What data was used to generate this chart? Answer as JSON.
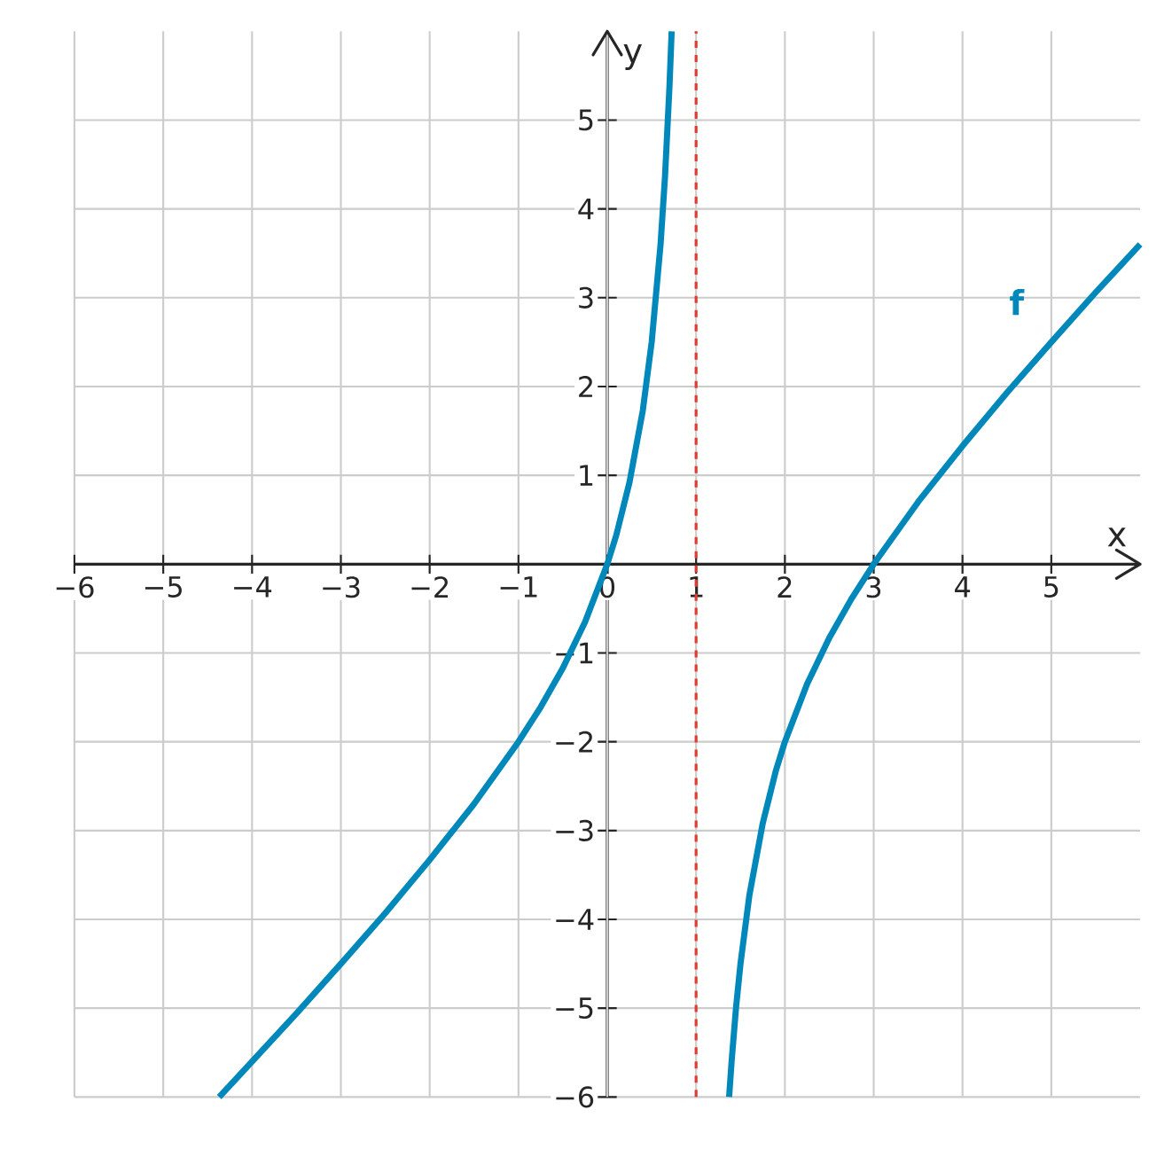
{
  "chart_data": {
    "type": "line",
    "xlabel": "x",
    "ylabel": "y",
    "xlim": [
      -6,
      6
    ],
    "ylim": [
      -6,
      6
    ],
    "xticks": [
      {
        "value": -6,
        "label": "−6"
      },
      {
        "value": -5,
        "label": "−5"
      },
      {
        "value": -4,
        "label": "−4"
      },
      {
        "value": -3,
        "label": "−3"
      },
      {
        "value": -2,
        "label": "−2"
      },
      {
        "value": -1,
        "label": "−1"
      },
      0,
      1,
      2,
      3,
      4,
      5
    ],
    "yticks": [
      {
        "value": -6,
        "label": "−6"
      },
      {
        "value": -5,
        "label": "−5"
      },
      {
        "value": -4,
        "label": "−4"
      },
      {
        "value": -3,
        "label": "−3"
      },
      {
        "value": -2,
        "label": "−2"
      },
      {
        "value": -1,
        "label": "−1"
      },
      1,
      2,
      3,
      4,
      5
    ],
    "grid": true,
    "marker": "none",
    "line_style": "solid",
    "series": [
      {
        "color": "#0088bb",
        "x": [
          -4.37,
          -4,
          -3.5,
          -3,
          -2.5,
          -2,
          -1.5,
          -1,
          -0.75,
          -0.5,
          -0.25,
          0,
          0.1,
          0.25,
          0.4,
          0.5,
          0.6,
          0.65,
          0.7,
          0.725
        ],
        "values": [
          -6.0,
          -5.6,
          -5.06,
          -4.5,
          -3.93,
          -3.33,
          -2.7,
          -2.0,
          -1.61,
          -1.17,
          -0.65,
          0,
          0.32,
          0.92,
          1.73,
          2.5,
          3.6,
          4.36,
          5.37,
          6.0
        ]
      },
      {
        "name": "f",
        "color": "#0088bb",
        "x": [
          1.372,
          1.4,
          1.45,
          1.5,
          1.6,
          1.75,
          1.9,
          2,
          2.25,
          2.5,
          2.75,
          3,
          3.5,
          4,
          4.5,
          5,
          5.5,
          6
        ],
        "values": [
          -6.0,
          -5.6,
          -4.99,
          -4.5,
          -3.73,
          -2.92,
          -2.32,
          -2.0,
          -1.35,
          -0.83,
          -0.39,
          0,
          0.7,
          1.33,
          1.93,
          2.5,
          3.06,
          3.6
        ]
      }
    ],
    "ref_lines": [
      {
        "axis": "x",
        "value": 1,
        "color": "#e03c31",
        "line_style": "dashed"
      }
    ]
  }
}
